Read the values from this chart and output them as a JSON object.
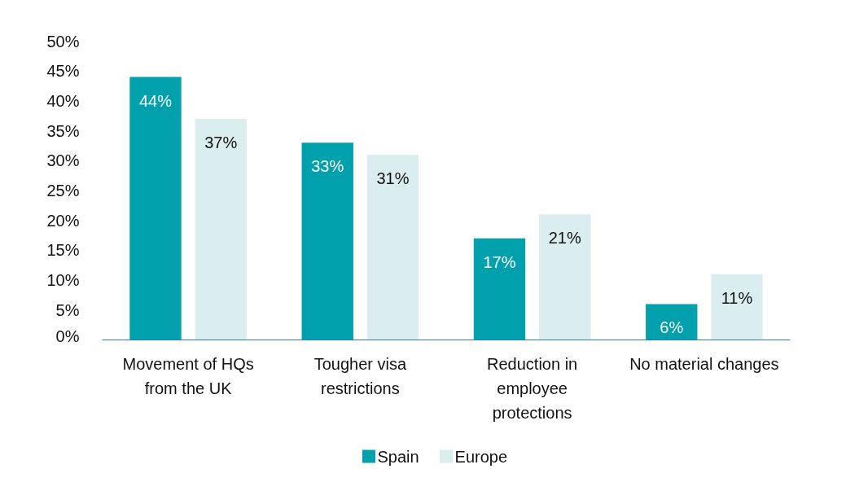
{
  "chart_data": {
    "type": "bar",
    "categories": [
      "Movement of HQs from the UK",
      "Tougher visa restrictions",
      "Reduction in employee protections",
      "No material changes"
    ],
    "series": [
      {
        "name": "Spain",
        "color": "#00a0ad",
        "values": [
          44,
          33,
          17,
          6
        ]
      },
      {
        "name": "Europe",
        "color": "#daedef",
        "values": [
          37,
          31,
          21,
          11
        ]
      }
    ],
    "ylim": [
      0,
      50
    ],
    "yticks": [
      {
        "value": 0,
        "label": "0%"
      },
      {
        "value": 5,
        "label": "5%"
      },
      {
        "value": 10,
        "label": "10%"
      },
      {
        "value": 15,
        "label": "15%"
      },
      {
        "value": 20,
        "label": "20%"
      },
      {
        "value": 25,
        "label": "25%"
      },
      {
        "value": 30,
        "label": "30%"
      },
      {
        "value": 35,
        "label": "35%"
      },
      {
        "value": 40,
        "label": "40%"
      },
      {
        "value": 45,
        "label": "45%"
      },
      {
        "value": 50,
        "label": "50%"
      }
    ],
    "value_labels": [
      [
        "44%",
        "33%",
        "17%",
        "6%"
      ],
      [
        "37%",
        "31%",
        "21%",
        "11%"
      ]
    ],
    "grid": false,
    "legend": "bottom"
  }
}
